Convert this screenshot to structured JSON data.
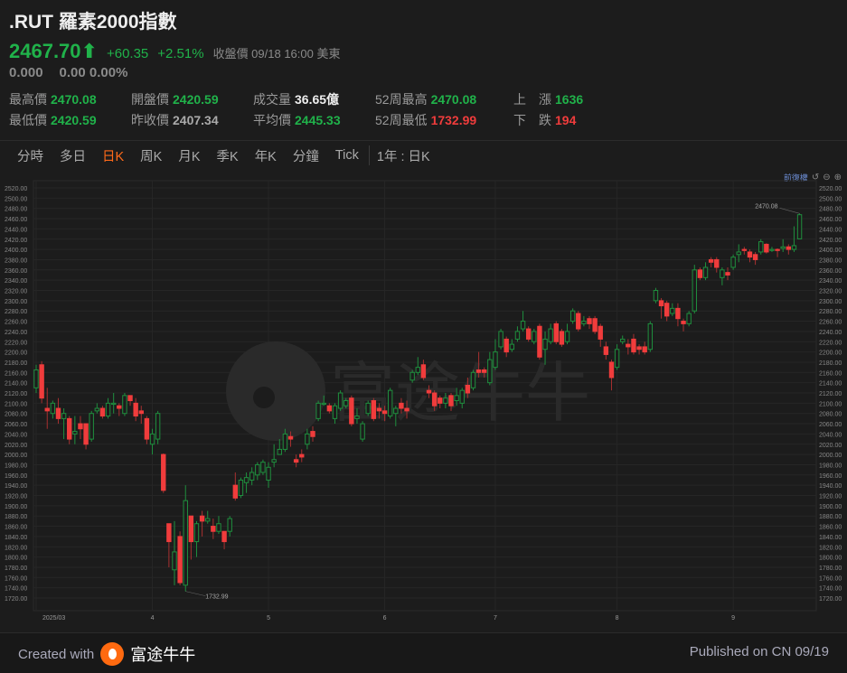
{
  "header": {
    "title": ".RUT 羅素2000指數",
    "price": "2467.70",
    "arrow": "⬆",
    "change": "+60.35",
    "change_pct": "+2.51%",
    "status": "收盤價 09/18 16:00 美東",
    "sub_price": "0.000",
    "sub_change": "0.00 0.00%"
  },
  "stats": {
    "high_label": "最高價",
    "high": "2470.08",
    "low_label": "最低價",
    "low": "2420.59",
    "open_label": "開盤價",
    "open": "2420.59",
    "prev_close_label": "昨收價",
    "prev_close": "2407.34",
    "volume_label": "成交量",
    "volume": "36.65億",
    "avg_label": "平均價",
    "avg": "2445.33",
    "wk52_high_label": "52周最高",
    "wk52_high": "2470.08",
    "wk52_low_label": "52周最低",
    "wk52_low": "1732.99",
    "up_label": "上　漲",
    "up": "1636",
    "down_label": "下　跌",
    "down": "194"
  },
  "tabs": [
    {
      "label": "分時"
    },
    {
      "label": "多日"
    },
    {
      "label": "日K",
      "active": true
    },
    {
      "label": "周K"
    },
    {
      "label": "月K"
    },
    {
      "label": "季K"
    },
    {
      "label": "年K"
    },
    {
      "label": "分鐘"
    },
    {
      "label": "Tick"
    }
  ],
  "period_label": "1年 : 日K",
  "chart_controls": {
    "adjust_label": "前復權",
    "icons": [
      "undo-icon",
      "zoom-out-icon",
      "zoom-in-icon"
    ]
  },
  "colors": {
    "up": "#20b24a",
    "down": "#f03c3c",
    "accent": "#ff6a1a",
    "background": "#1c1c1c"
  },
  "watermark": "富途牛牛",
  "chart_data": {
    "type": "candlestick",
    "ylim": [
      1720,
      2520
    ],
    "y_tick_step": 20,
    "grid": true,
    "x_ticks": [
      {
        "label": "2025/03",
        "index": 0
      },
      {
        "label": "4",
        "index": 21
      },
      {
        "label": "5",
        "index": 42
      },
      {
        "label": "6",
        "index": 63
      },
      {
        "label": "7",
        "index": 83
      },
      {
        "label": "8",
        "index": 105
      },
      {
        "label": "9",
        "index": 126
      }
    ],
    "annotations": [
      {
        "label": "2470.08",
        "index": 138,
        "value": 2470.08
      },
      {
        "label": "1732.99",
        "index": 27,
        "value": 1732.99
      }
    ],
    "ohlc": [
      [
        2130,
        2175,
        2120,
        2165
      ],
      [
        2175,
        2182,
        2100,
        2110
      ],
      [
        2090,
        2130,
        2050,
        2085
      ],
      [
        2080,
        2105,
        2070,
        2100
      ],
      [
        2090,
        2110,
        2060,
        2070
      ],
      [
        2070,
        2090,
        2030,
        2080
      ],
      [
        2070,
        2075,
        2020,
        2030
      ],
      [
        2040,
        2075,
        2020,
        2045
      ],
      [
        2060,
        2075,
        2030,
        2050
      ],
      [
        2060,
        2060,
        2010,
        2020
      ],
      [
        2030,
        2085,
        2025,
        2080
      ],
      [
        2085,
        2100,
        2080,
        2090
      ],
      [
        2090,
        2095,
        2070,
        2075
      ],
      [
        2075,
        2110,
        2070,
        2100
      ],
      [
        2100,
        2120,
        2080,
        2100
      ],
      [
        2095,
        2100,
        2075,
        2090
      ],
      [
        2080,
        2120,
        2075,
        2115
      ],
      [
        2115,
        2115,
        2095,
        2105
      ],
      [
        2100,
        2110,
        2065,
        2075
      ],
      [
        2085,
        2095,
        2060,
        2080
      ],
      [
        2070,
        2075,
        2020,
        2030
      ],
      [
        2020,
        2050,
        2000,
        2040
      ],
      [
        2030,
        2085,
        2020,
        2080
      ],
      [
        2000,
        2002,
        1925,
        1930
      ],
      [
        1865,
        1865,
        1780,
        1830
      ],
      [
        1775,
        1870,
        1745,
        1810
      ],
      [
        1840,
        1850,
        1745,
        1750
      ],
      [
        1745,
        1940,
        1732.99,
        1910
      ],
      [
        1880,
        1880,
        1795,
        1830
      ],
      [
        1830,
        1870,
        1800,
        1865
      ],
      [
        1880,
        1890,
        1840,
        1870
      ],
      [
        1870,
        1890,
        1865,
        1875
      ],
      [
        1860,
        1875,
        1835,
        1850
      ],
      [
        1850,
        1880,
        1845,
        1865
      ],
      [
        1850,
        1850,
        1815,
        1830
      ],
      [
        1850,
        1880,
        1840,
        1875
      ],
      [
        1940,
        1965,
        1910,
        1915
      ],
      [
        1920,
        1955,
        1915,
        1950
      ],
      [
        1945,
        1965,
        1925,
        1955
      ],
      [
        1950,
        1975,
        1940,
        1965
      ],
      [
        1960,
        1985,
        1950,
        1980
      ],
      [
        1965,
        1990,
        1960,
        1985
      ],
      [
        1950,
        1985,
        1935,
        1975
      ],
      [
        1985,
        2020,
        1975,
        1990
      ],
      [
        2000,
        2030,
        2000,
        2010
      ],
      [
        2010,
        2050,
        2005,
        2040
      ],
      [
        2035,
        2045,
        2015,
        2030
      ],
      [
        1990,
        2000,
        1975,
        1985
      ],
      [
        2000,
        2010,
        1985,
        1995
      ],
      [
        2020,
        2050,
        2010,
        2040
      ],
      [
        2045,
        2055,
        2025,
        2035
      ],
      [
        2070,
        2105,
        2065,
        2100
      ],
      [
        2100,
        2115,
        2095,
        2100
      ],
      [
        2095,
        2100,
        2080,
        2085
      ],
      [
        2070,
        2100,
        2060,
        2095
      ],
      [
        2090,
        2125,
        2085,
        2120
      ],
      [
        2095,
        2110,
        2090,
        2105
      ],
      [
        2110,
        2115,
        2055,
        2060
      ],
      [
        2070,
        2090,
        2060,
        2075
      ],
      [
        2030,
        2065,
        2025,
        2060
      ],
      [
        2080,
        2105,
        2075,
        2100
      ],
      [
        2105,
        2110,
        2065,
        2070
      ],
      [
        2090,
        2100,
        2070,
        2085
      ],
      [
        2085,
        2095,
        2065,
        2080
      ],
      [
        2075,
        2130,
        2070,
        2125
      ],
      [
        2080,
        2095,
        2055,
        2090
      ],
      [
        2100,
        2110,
        2080,
        2090
      ],
      [
        2090,
        2105,
        2070,
        2085
      ],
      [
        2145,
        2165,
        2140,
        2160
      ],
      [
        2160,
        2190,
        2155,
        2170
      ],
      [
        2175,
        2185,
        2145,
        2150
      ],
      [
        2125,
        2135,
        2110,
        2120
      ],
      [
        2120,
        2125,
        2085,
        2095
      ],
      [
        2110,
        2115,
        2090,
        2100
      ],
      [
        2100,
        2120,
        2090,
        2110
      ],
      [
        2115,
        2120,
        2085,
        2095
      ],
      [
        2105,
        2130,
        2095,
        2115
      ],
      [
        2100,
        2130,
        2090,
        2125
      ],
      [
        2135,
        2150,
        2110,
        2120
      ],
      [
        2130,
        2165,
        2125,
        2160
      ],
      [
        2165,
        2200,
        2150,
        2160
      ],
      [
        2165,
        2170,
        2150,
        2160
      ],
      [
        2140,
        2200,
        2135,
        2185
      ],
      [
        2170,
        2225,
        2165,
        2200
      ],
      [
        2210,
        2245,
        2205,
        2240
      ],
      [
        2225,
        2230,
        2190,
        2200
      ],
      [
        2205,
        2225,
        2200,
        2215
      ],
      [
        2225,
        2250,
        2220,
        2240
      ],
      [
        2245,
        2280,
        2240,
        2260
      ],
      [
        2245,
        2250,
        2220,
        2225
      ],
      [
        2220,
        2245,
        2215,
        2240
      ],
      [
        2250,
        2255,
        2185,
        2190
      ],
      [
        2205,
        2240,
        2175,
        2225
      ],
      [
        2220,
        2255,
        2215,
        2245
      ],
      [
        2255,
        2260,
        2215,
        2220
      ],
      [
        2240,
        2245,
        2210,
        2215
      ],
      [
        2220,
        2255,
        2215,
        2240
      ],
      [
        2260,
        2285,
        2255,
        2280
      ],
      [
        2275,
        2280,
        2240,
        2245
      ],
      [
        2255,
        2270,
        2250,
        2260
      ],
      [
        2265,
        2270,
        2245,
        2255
      ],
      [
        2265,
        2270,
        2235,
        2240
      ],
      [
        2250,
        2255,
        2210,
        2225
      ],
      [
        2210,
        2220,
        2185,
        2195
      ],
      [
        2180,
        2185,
        2125,
        2150
      ],
      [
        2170,
        2215,
        2165,
        2205
      ],
      [
        2220,
        2232,
        2215,
        2225
      ],
      [
        2215,
        2225,
        2195,
        2210
      ],
      [
        2225,
        2235,
        2195,
        2200
      ],
      [
        2210,
        2215,
        2195,
        2205
      ],
      [
        2210,
        2220,
        2195,
        2200
      ],
      [
        2205,
        2260,
        2200,
        2255
      ],
      [
        2300,
        2325,
        2295,
        2320
      ],
      [
        2300,
        2305,
        2265,
        2290
      ],
      [
        2295,
        2300,
        2260,
        2270
      ],
      [
        2275,
        2295,
        2270,
        2285
      ],
      [
        2285,
        2295,
        2250,
        2265
      ],
      [
        2260,
        2265,
        2240,
        2255
      ],
      [
        2255,
        2280,
        2250,
        2275
      ],
      [
        2280,
        2370,
        2275,
        2360
      ],
      [
        2360,
        2365,
        2340,
        2345
      ],
      [
        2345,
        2375,
        2340,
        2365
      ],
      [
        2380,
        2385,
        2365,
        2375
      ],
      [
        2380,
        2385,
        2355,
        2365
      ],
      [
        2345,
        2365,
        2330,
        2360
      ],
      [
        2355,
        2365,
        2340,
        2350
      ],
      [
        2365,
        2390,
        2360,
        2385
      ],
      [
        2390,
        2410,
        2375,
        2395
      ],
      [
        2400,
        2405,
        2390,
        2398
      ],
      [
        2395,
        2400,
        2375,
        2385
      ],
      [
        2390,
        2395,
        2370,
        2380
      ],
      [
        2395,
        2420,
        2390,
        2415
      ],
      [
        2410,
        2412,
        2392,
        2395
      ],
      [
        2400,
        2405,
        2395,
        2400
      ],
      [
        2400,
        2402,
        2385,
        2398
      ],
      [
        2402,
        2420,
        2395,
        2405
      ],
      [
        2405,
        2410,
        2390,
        2400
      ],
      [
        2400,
        2445,
        2395,
        2407.34
      ],
      [
        2420.59,
        2470.08,
        2420.59,
        2467.7
      ]
    ]
  },
  "footer": {
    "created_with": "Created with",
    "brand": "富途牛牛",
    "published": "Published on CN 09/19"
  }
}
